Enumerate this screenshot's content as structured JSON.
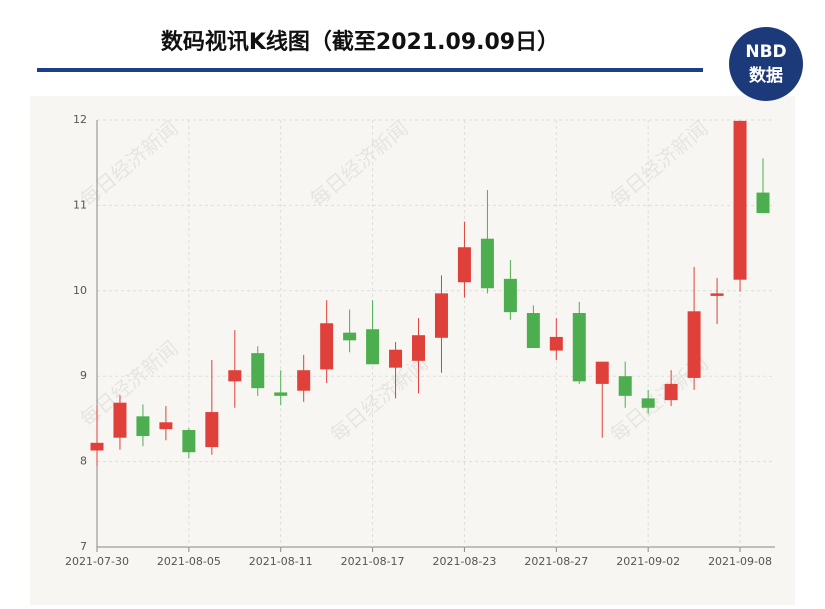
{
  "chart_data": {
    "type": "candlestick",
    "title": "数码视讯K线图（截至2021.09.09日）",
    "logo": {
      "top": "NBD",
      "bottom": "数据"
    },
    "watermark": "每日经济新闻",
    "categories": [
      "2021-07-30",
      null,
      null,
      null,
      "2021-08-05",
      null,
      null,
      null,
      "2021-08-11",
      null,
      null,
      null,
      "2021-08-17",
      null,
      null,
      null,
      "2021-08-23",
      null,
      null,
      null,
      "2021-08-27",
      null,
      null,
      null,
      "2021-09-02",
      null,
      null,
      null,
      "2021-09-08",
      null
    ],
    "open": [
      8.13,
      8.28,
      8.53,
      8.38,
      8.37,
      8.17,
      8.94,
      9.27,
      8.81,
      8.83,
      9.08,
      9.51,
      9.55,
      9.1,
      9.18,
      9.45,
      10.1,
      10.61,
      10.14,
      9.74,
      9.3,
      9.74,
      8.91,
      9.0,
      8.74,
      8.72,
      8.98,
      9.94,
      10.13,
      11.15
    ],
    "close": [
      8.22,
      8.69,
      8.3,
      8.46,
      8.11,
      8.58,
      9.07,
      8.86,
      8.77,
      9.07,
      9.62,
      9.42,
      9.14,
      9.31,
      9.48,
      9.97,
      10.51,
      10.03,
      9.75,
      9.33,
      9.46,
      8.94,
      9.17,
      8.77,
      8.63,
      8.91,
      9.76,
      9.97,
      11.99,
      10.91
    ],
    "high": [
      8.66,
      8.78,
      8.67,
      8.65,
      8.39,
      9.19,
      9.54,
      9.35,
      9.07,
      9.25,
      9.89,
      9.78,
      9.89,
      9.4,
      9.68,
      10.18,
      10.81,
      11.18,
      10.36,
      9.83,
      9.68,
      9.87,
      9.17,
      9.17,
      8.84,
      9.07,
      10.28,
      10.15,
      11.99,
      11.55
    ],
    "low": [
      7.95,
      8.14,
      8.18,
      8.25,
      8.04,
      8.08,
      8.63,
      8.77,
      8.66,
      8.7,
      8.92,
      9.28,
      9.14,
      8.74,
      8.8,
      9.04,
      9.92,
      9.97,
      9.66,
      9.33,
      9.19,
      8.91,
      8.28,
      8.63,
      8.56,
      8.65,
      8.84,
      9.61,
      9.99,
      10.91
    ],
    "up_color": "#e0403a",
    "down_color": "#4cae4f",
    "ylim": [
      7,
      12
    ],
    "yticks": [
      7,
      8,
      9,
      10,
      11,
      12
    ],
    "grid": true
  }
}
